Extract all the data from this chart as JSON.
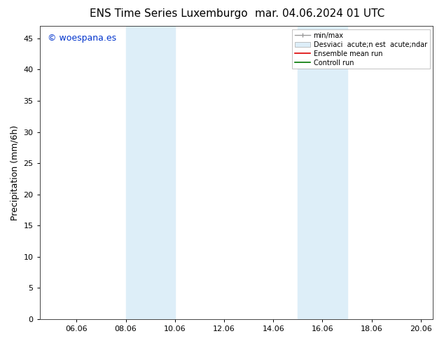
{
  "title_left": "ENS Time Series Luxemburgo",
  "title_right": "mar. 04.06.2024 01 UTC",
  "ylabel": "Precipitation (mm/6h)",
  "watermark": "© woespana.es",
  "background_color": "#ffffff",
  "plot_bg_color": "#ffffff",
  "xmin": 4.5,
  "xmax": 20.5,
  "ymin": 0,
  "ymax": 47,
  "yticks": [
    0,
    5,
    10,
    15,
    20,
    25,
    30,
    35,
    40,
    45
  ],
  "xtick_labels": [
    "06.06",
    "08.06",
    "10.06",
    "12.06",
    "14.06",
    "16.06",
    "18.06",
    "20.06"
  ],
  "xtick_positions": [
    6.0,
    8.0,
    10.0,
    12.0,
    14.0,
    16.0,
    18.0,
    20.0
  ],
  "shaded_regions": [
    {
      "xmin": 8.0,
      "xmax": 10.0,
      "color": "#ddeef8"
    },
    {
      "xmin": 15.0,
      "xmax": 17.0,
      "color": "#ddeef8"
    }
  ],
  "legend_labels": [
    "min/max",
    "Desviaci  acute;n est  acute;ndar",
    "Ensemble mean run",
    "Controll run"
  ],
  "legend_colors_line": [
    "#999999",
    "#ccddee",
    "#dd0000",
    "#007700"
  ],
  "title_fontsize": 11,
  "ylabel_fontsize": 9,
  "tick_fontsize": 8,
  "legend_fontsize": 7,
  "watermark_fontsize": 9,
  "watermark_color": "#0033cc"
}
